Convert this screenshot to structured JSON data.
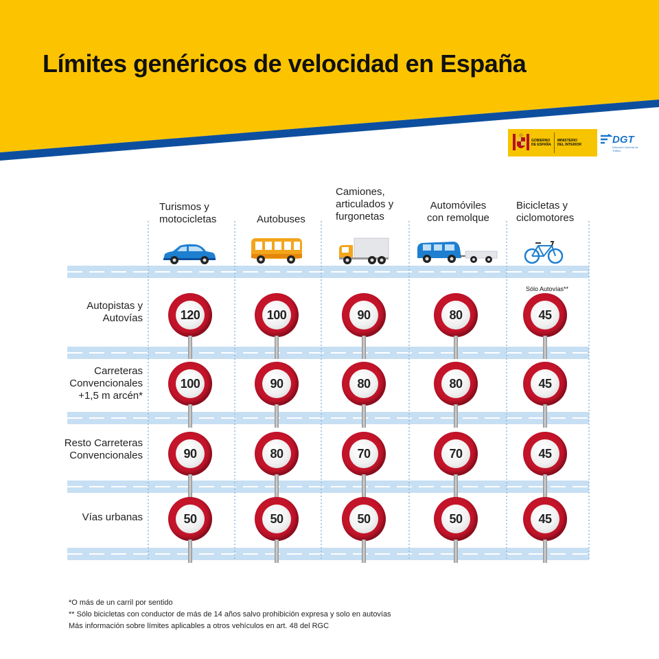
{
  "title": "Límites genéricos de velocidad en España",
  "logos": {
    "gobierno_line1": "GOBIERNO",
    "gobierno_line2": "DE ESPAÑA",
    "ministerio_line1": "MINISTERIO",
    "ministerio_line2": "DEL INTERIOR",
    "dgt": "DGT",
    "dgt_sub": "Dirección General de Tráfico"
  },
  "columns": [
    {
      "label_line1": "Turismos y",
      "label_line2": "motocicletas",
      "label_line3": "",
      "icon": "car-icon"
    },
    {
      "label_line1": "Autobuses",
      "label_line2": "",
      "label_line3": "",
      "icon": "bus-icon"
    },
    {
      "label_line1": "Camiones,",
      "label_line2": "articulados y",
      "label_line3": "furgonetas",
      "icon": "truck-icon"
    },
    {
      "label_line1": "Automóviles",
      "label_line2": "con remolque",
      "label_line3": "",
      "icon": "car-trailer-icon"
    },
    {
      "label_line1": "Bicicletas y",
      "label_line2": "ciclomotores",
      "label_line3": "",
      "icon": "bicycle-icon"
    }
  ],
  "rows": [
    {
      "label_line1": "Autopistas y",
      "label_line2": "Autovías",
      "label_line3": "",
      "limits": [
        "120",
        "100",
        "90",
        "80",
        "45"
      ]
    },
    {
      "label_line1": "Carreteras",
      "label_line2": "Convencionales",
      "label_line3": "+1,5 m arcén*",
      "limits": [
        "100",
        "90",
        "80",
        "80",
        "45"
      ]
    },
    {
      "label_line1": "Resto Carreteras",
      "label_line2": "Convencionales",
      "label_line3": "",
      "limits": [
        "90",
        "80",
        "70",
        "70",
        "45"
      ]
    },
    {
      "label_line1": "Vías urbanas",
      "label_line2": "",
      "label_line3": "",
      "limits": [
        "50",
        "50",
        "50",
        "50",
        "45"
      ]
    }
  ],
  "note_solo_autovias": "Sólo Autovías**",
  "footnotes": [
    "*O más de un carril por sentido",
    "** Sólo bicicletas con conductor de más de 14 años salvo prohibición expresa y solo en autovías",
    "Más información sobre límites aplicables a otros vehículos en art. 48 del RGC"
  ],
  "colors": {
    "banner_yellow": "#fcc400",
    "banner_blue": "#0d4f9e",
    "road": "#c7dff3",
    "sign_red": "#c4142a",
    "grid_dots": "#8fb8de"
  }
}
